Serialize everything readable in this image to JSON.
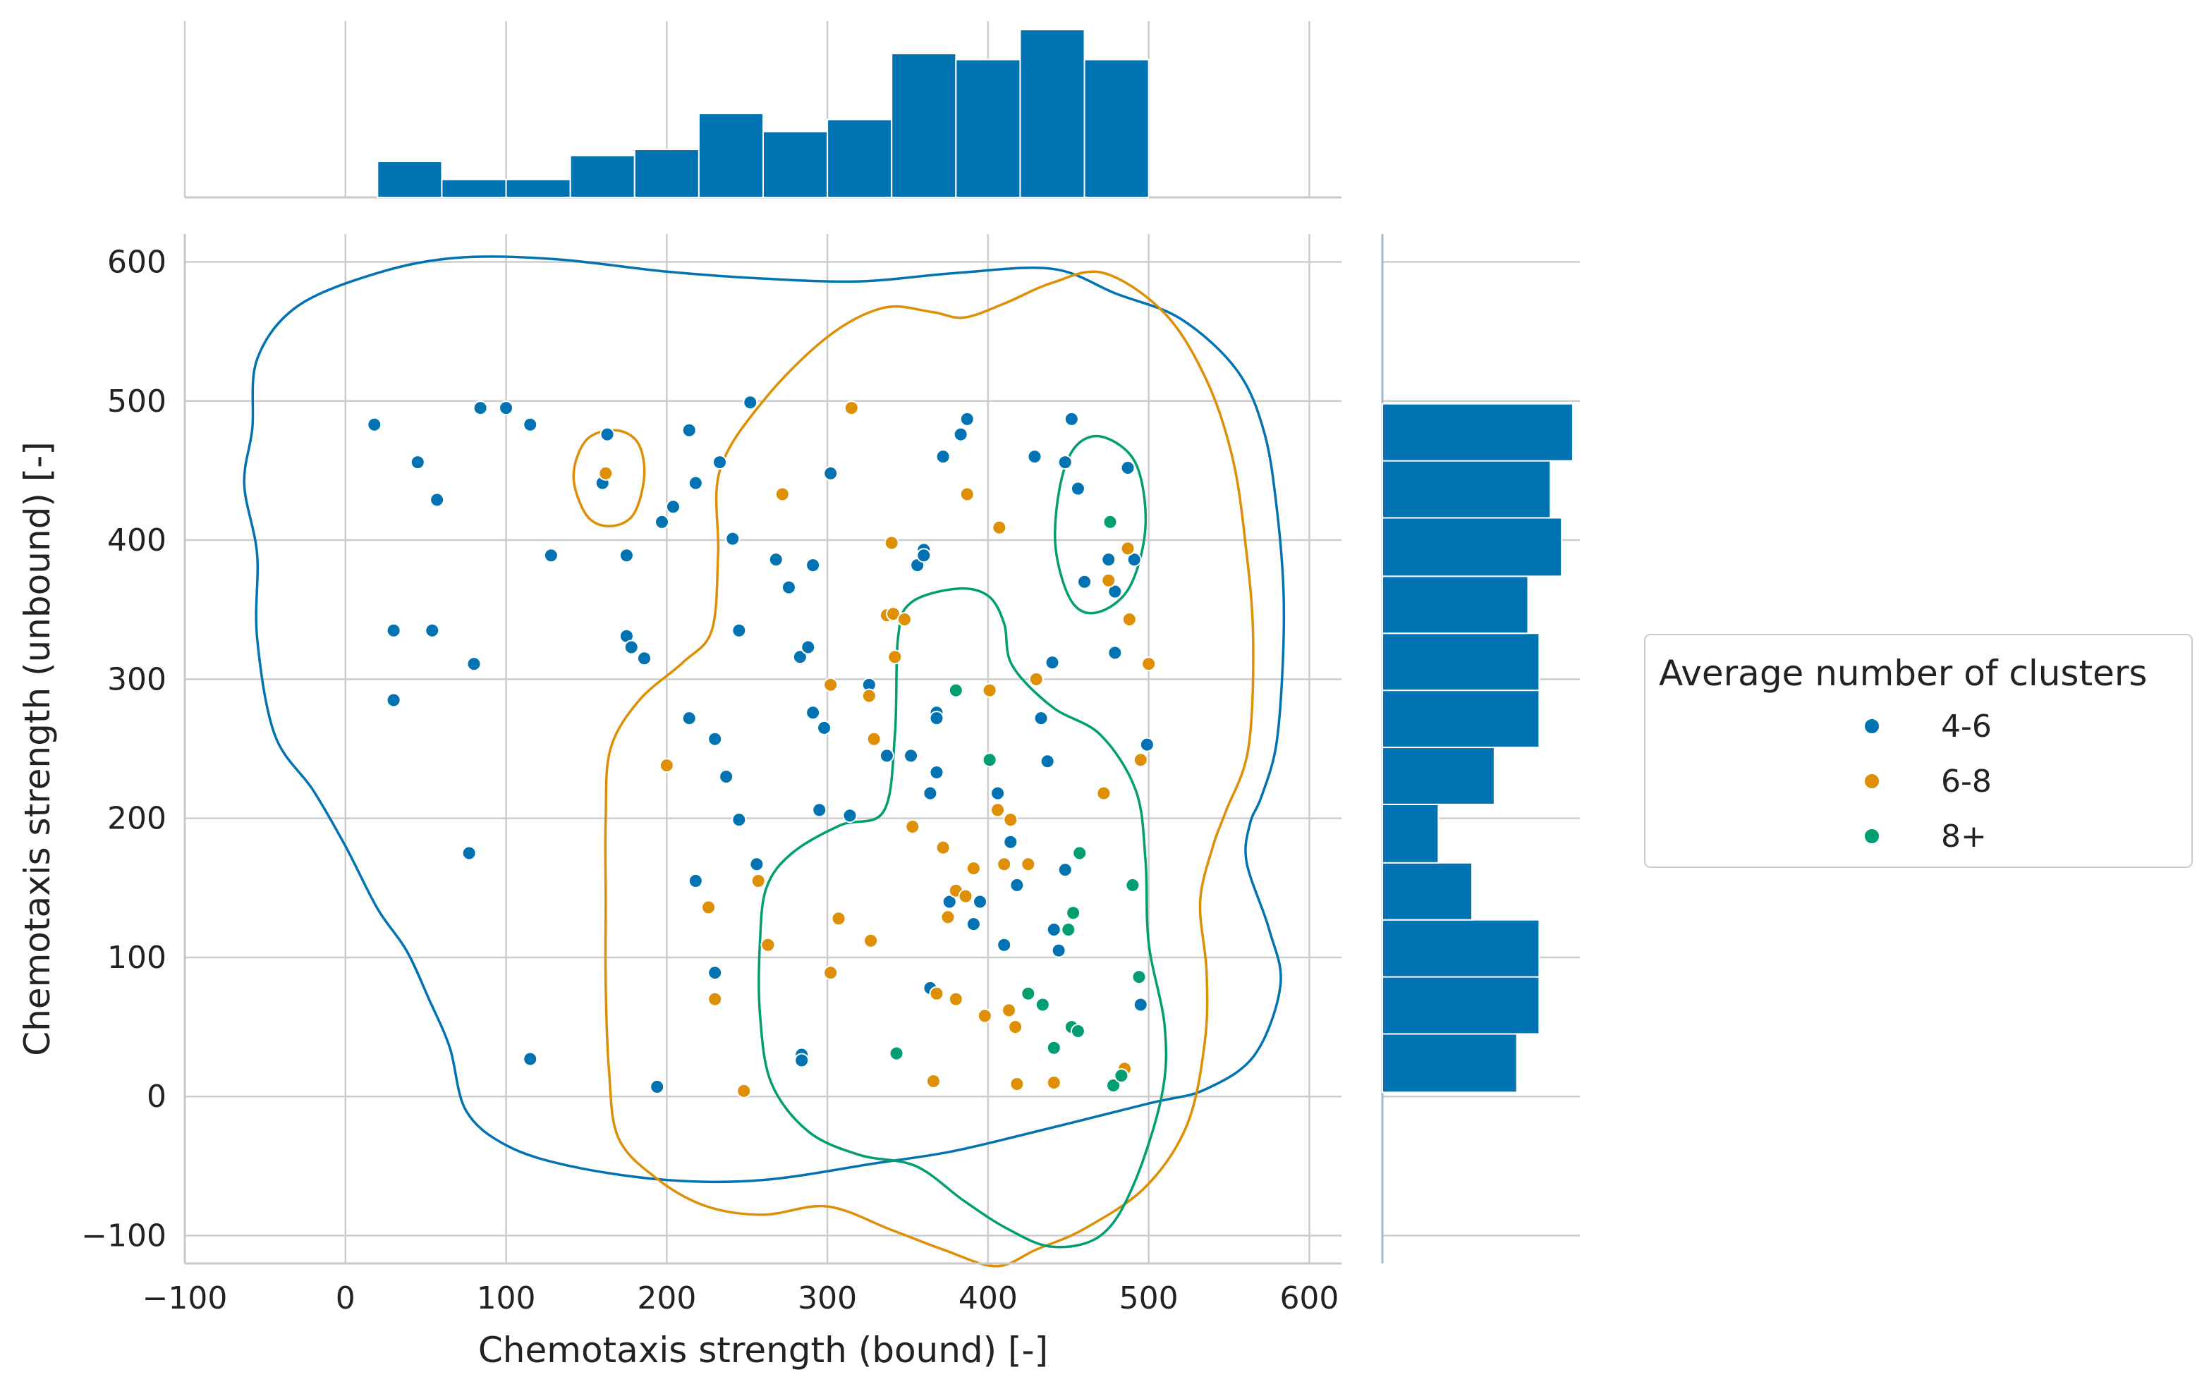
{
  "chart_data": {
    "type": "scatter",
    "xlabel": "Chemotaxis strength (bound) [-]",
    "ylabel": "Chemotaxis strength (unbound) [-]",
    "xlim": [
      -100,
      620
    ],
    "ylim": [
      -120,
      620
    ],
    "xticks": [
      -100,
      0,
      100,
      200,
      300,
      400,
      500,
      600
    ],
    "yticks": [
      -100,
      0,
      100,
      200,
      300,
      400,
      500,
      600
    ],
    "xtick_labels": [
      "−100",
      "0",
      "100",
      "200",
      "300",
      "400",
      "500",
      "600"
    ],
    "ytick_labels": [
      "−100",
      "0",
      "100",
      "200",
      "300",
      "400",
      "500",
      "600"
    ],
    "grid": true,
    "legend": {
      "title": "Average number of clusters",
      "placement": "center-right, outside plot",
      "entries": [
        "4-6",
        "6-8",
        "8+"
      ]
    },
    "colors": {
      "4-6": "#0173b2",
      "6-8": "#de8f05",
      "8+": "#029e73",
      "grid": "#cccccc",
      "axis": "#c8c8c8"
    },
    "series": [
      {
        "name": "4-6",
        "points": [
          [
            18,
            483
          ],
          [
            45,
            456
          ],
          [
            57,
            429
          ],
          [
            30,
            335
          ],
          [
            30,
            285
          ],
          [
            54,
            335
          ],
          [
            80,
            311
          ],
          [
            84,
            495
          ],
          [
            100,
            495
          ],
          [
            115,
            483
          ],
          [
            128,
            389
          ],
          [
            77,
            175
          ],
          [
            115,
            27
          ],
          [
            163,
            476
          ],
          [
            160,
            441
          ],
          [
            175,
            389
          ],
          [
            175,
            331
          ],
          [
            178,
            323
          ],
          [
            186,
            315
          ],
          [
            197,
            413
          ],
          [
            204,
            424
          ],
          [
            214,
            479
          ],
          [
            218,
            441
          ],
          [
            233,
            456
          ],
          [
            241,
            401
          ],
          [
            214,
            272
          ],
          [
            230,
            257
          ],
          [
            237,
            230
          ],
          [
            245,
            335
          ],
          [
            245,
            199
          ],
          [
            252,
            499
          ],
          [
            256,
            167
          ],
          [
            218,
            155
          ],
          [
            230,
            89
          ],
          [
            268,
            386
          ],
          [
            276,
            366
          ],
          [
            283,
            316
          ],
          [
            288,
            323
          ],
          [
            291,
            276
          ],
          [
            291,
            382
          ],
          [
            295,
            206
          ],
          [
            298,
            265
          ],
          [
            302,
            448
          ],
          [
            314,
            202
          ],
          [
            326,
            296
          ],
          [
            337,
            245
          ],
          [
            352,
            245
          ],
          [
            356,
            382
          ],
          [
            360,
            393
          ],
          [
            360,
            389
          ],
          [
            364,
            218
          ],
          [
            368,
            276
          ],
          [
            368,
            272
          ],
          [
            368,
            233
          ],
          [
            372,
            460
          ],
          [
            383,
            476
          ],
          [
            387,
            487
          ],
          [
            395,
            140
          ],
          [
            376,
            140
          ],
          [
            391,
            124
          ],
          [
            406,
            218
          ],
          [
            410,
            109
          ],
          [
            414,
            183
          ],
          [
            418,
            152
          ],
          [
            429,
            460
          ],
          [
            433,
            272
          ],
          [
            437,
            241
          ],
          [
            440,
            312
          ],
          [
            441,
            120
          ],
          [
            444,
            105
          ],
          [
            448,
            456
          ],
          [
            448,
            163
          ],
          [
            452,
            487
          ],
          [
            456,
            437
          ],
          [
            460,
            370
          ],
          [
            475,
            386
          ],
          [
            479,
            363
          ],
          [
            479,
            319
          ],
          [
            487,
            452
          ],
          [
            491,
            386
          ],
          [
            499,
            253
          ],
          [
            495,
            66
          ],
          [
            284,
            30
          ],
          [
            284,
            26
          ],
          [
            194,
            7
          ],
          [
            364,
            78
          ]
        ]
      },
      {
        "name": "6-8",
        "points": [
          [
            162,
            448
          ],
          [
            272,
            433
          ],
          [
            315,
            495
          ],
          [
            387,
            433
          ],
          [
            407,
            409
          ],
          [
            340,
            398
          ],
          [
            337,
            346
          ],
          [
            341,
            347
          ],
          [
            348,
            343
          ],
          [
            342,
            316
          ],
          [
            302,
            296
          ],
          [
            326,
            288
          ],
          [
            200,
            238
          ],
          [
            329,
            257
          ],
          [
            353,
            194
          ],
          [
            372,
            179
          ],
          [
            375,
            129
          ],
          [
            380,
            148
          ],
          [
            386,
            144
          ],
          [
            391,
            164
          ],
          [
            401,
            292
          ],
          [
            406,
            206
          ],
          [
            414,
            199
          ],
          [
            410,
            167
          ],
          [
            425,
            167
          ],
          [
            398,
            58
          ],
          [
            413,
            62
          ],
          [
            417,
            50
          ],
          [
            430,
            300
          ],
          [
            441,
            10
          ],
          [
            418,
            9
          ],
          [
            366,
            11
          ],
          [
            248,
            4
          ],
          [
            226,
            136
          ],
          [
            257,
            155
          ],
          [
            263,
            109
          ],
          [
            230,
            70
          ],
          [
            302,
            89
          ],
          [
            307,
            128
          ],
          [
            327,
            112
          ],
          [
            368,
            74
          ],
          [
            380,
            70
          ],
          [
            472,
            218
          ],
          [
            475,
            371
          ],
          [
            487,
            394
          ],
          [
            488,
            343
          ],
          [
            495,
            242
          ],
          [
            500,
            311
          ],
          [
            485,
            20
          ]
        ]
      },
      {
        "name": "8+",
        "points": [
          [
            476,
            413
          ],
          [
            380,
            292
          ],
          [
            401,
            242
          ],
          [
            457,
            175
          ],
          [
            490,
            152
          ],
          [
            453,
            132
          ],
          [
            450,
            120
          ],
          [
            494,
            86
          ],
          [
            425,
            74
          ],
          [
            434,
            66
          ],
          [
            452,
            50
          ],
          [
            456,
            47
          ],
          [
            441,
            35
          ],
          [
            478,
            8
          ],
          [
            483,
            15
          ],
          [
            343,
            31
          ]
        ]
      }
    ],
    "marginal_x_histogram": {
      "bin_edges": [
        20,
        60,
        100,
        140,
        180,
        220,
        260,
        300,
        340,
        380,
        420,
        460,
        500
      ],
      "counts": [
        6,
        3,
        3,
        7,
        8,
        14,
        11,
        13,
        24,
        23,
        28,
        23
      ]
    },
    "marginal_y_histogram": {
      "bin_edges": [
        3,
        45,
        86,
        127,
        168,
        210,
        251,
        292,
        333,
        374,
        416,
        457,
        498
      ],
      "counts": [
        12,
        14,
        14,
        8,
        5,
        10,
        14,
        14,
        13,
        16,
        15,
        17
      ]
    },
    "kde_contours": [
      {
        "name": "4-6",
        "path": [
          [
            -58,
            480
          ],
          [
            -55,
            530
          ],
          [
            -30,
            568
          ],
          [
            20,
            592
          ],
          [
            70,
            603
          ],
          [
            130,
            602
          ],
          [
            200,
            593
          ],
          [
            260,
            588
          ],
          [
            320,
            586
          ],
          [
            380,
            592
          ],
          [
            440,
            595
          ],
          [
            480,
            577
          ],
          [
            520,
            559
          ],
          [
            555,
            522
          ],
          [
            572,
            477
          ],
          [
            580,
            420
          ],
          [
            584,
            360
          ],
          [
            583,
            300
          ],
          [
            579,
            250
          ],
          [
            570,
            215
          ],
          [
            563,
            196
          ],
          [
            561,
            168
          ],
          [
            575,
            120
          ],
          [
            582,
            80
          ],
          [
            566,
            30
          ],
          [
            535,
            5
          ],
          [
            500,
            -5
          ],
          [
            420,
            -28
          ],
          [
            375,
            -40
          ],
          [
            330,
            -48
          ],
          [
            260,
            -60
          ],
          [
            200,
            -60
          ],
          [
            140,
            -50
          ],
          [
            100,
            -35
          ],
          [
            75,
            -10
          ],
          [
            65,
            35
          ],
          [
            52,
            70
          ],
          [
            38,
            105
          ],
          [
            20,
            135
          ],
          [
            0,
            180
          ],
          [
            -20,
            220
          ],
          [
            -44,
            260
          ],
          [
            -55,
            330
          ],
          [
            -55,
            390
          ],
          [
            -63,
            440
          ],
          [
            -58,
            480
          ]
        ]
      },
      {
        "name": "6-8",
        "path": [
          [
            233,
            450
          ],
          [
            260,
            500
          ],
          [
            300,
            546
          ],
          [
            335,
            567
          ],
          [
            365,
            564
          ],
          [
            385,
            560
          ],
          [
            410,
            570
          ],
          [
            440,
            585
          ],
          [
            472,
            592
          ],
          [
            510,
            563
          ],
          [
            536,
            515
          ],
          [
            552,
            460
          ],
          [
            560,
            400
          ],
          [
            565,
            330
          ],
          [
            562,
            250
          ],
          [
            548,
            205
          ],
          [
            540,
            180
          ],
          [
            532,
            140
          ],
          [
            536,
            90
          ],
          [
            535,
            40
          ],
          [
            524,
            -20
          ],
          [
            498,
            -65
          ],
          [
            460,
            -95
          ],
          [
            430,
            -110
          ],
          [
            405,
            -122
          ],
          [
            372,
            -110
          ],
          [
            340,
            -96
          ],
          [
            300,
            -79
          ],
          [
            260,
            -85
          ],
          [
            225,
            -79
          ],
          [
            195,
            -60
          ],
          [
            170,
            -30
          ],
          [
            164,
            20
          ],
          [
            162,
            80
          ],
          [
            162,
            140
          ],
          [
            162,
            200
          ],
          [
            165,
            250
          ],
          [
            183,
            285
          ],
          [
            210,
            312
          ],
          [
            228,
            335
          ],
          [
            232,
            390
          ],
          [
            233,
            450
          ]
        ]
      },
      {
        "name": "6-8",
        "path": [
          [
            168,
            479
          ],
          [
            182,
            470
          ],
          [
            186,
            446
          ],
          [
            179,
            418
          ],
          [
            164,
            410
          ],
          [
            150,
            418
          ],
          [
            142,
            446
          ],
          [
            150,
            472
          ],
          [
            168,
            479
          ]
        ]
      },
      {
        "name": "8+",
        "path": [
          [
            344,
            330
          ],
          [
            352,
            355
          ],
          [
            380,
            365
          ],
          [
            400,
            360
          ],
          [
            410,
            340
          ],
          [
            415,
            310
          ],
          [
            440,
            280
          ],
          [
            470,
            260
          ],
          [
            492,
            220
          ],
          [
            498,
            170
          ],
          [
            500,
            110
          ],
          [
            510,
            50
          ],
          [
            508,
            0
          ],
          [
            490,
            -65
          ],
          [
            470,
            -100
          ],
          [
            440,
            -108
          ],
          [
            412,
            -95
          ],
          [
            385,
            -75
          ],
          [
            355,
            -50
          ],
          [
            320,
            -42
          ],
          [
            288,
            -25
          ],
          [
            265,
            10
          ],
          [
            258,
            60
          ],
          [
            258,
            110
          ],
          [
            262,
            150
          ],
          [
            278,
            175
          ],
          [
            308,
            195
          ],
          [
            335,
            205
          ],
          [
            342,
            260
          ],
          [
            344,
            330
          ]
        ]
      },
      {
        "name": "8+",
        "path": [
          [
            472,
            474
          ],
          [
            492,
            455
          ],
          [
            498,
            410
          ],
          [
            488,
            366
          ],
          [
            468,
            348
          ],
          [
            452,
            356
          ],
          [
            442,
            395
          ],
          [
            445,
            440
          ],
          [
            455,
            468
          ],
          [
            472,
            474
          ]
        ]
      }
    ]
  }
}
